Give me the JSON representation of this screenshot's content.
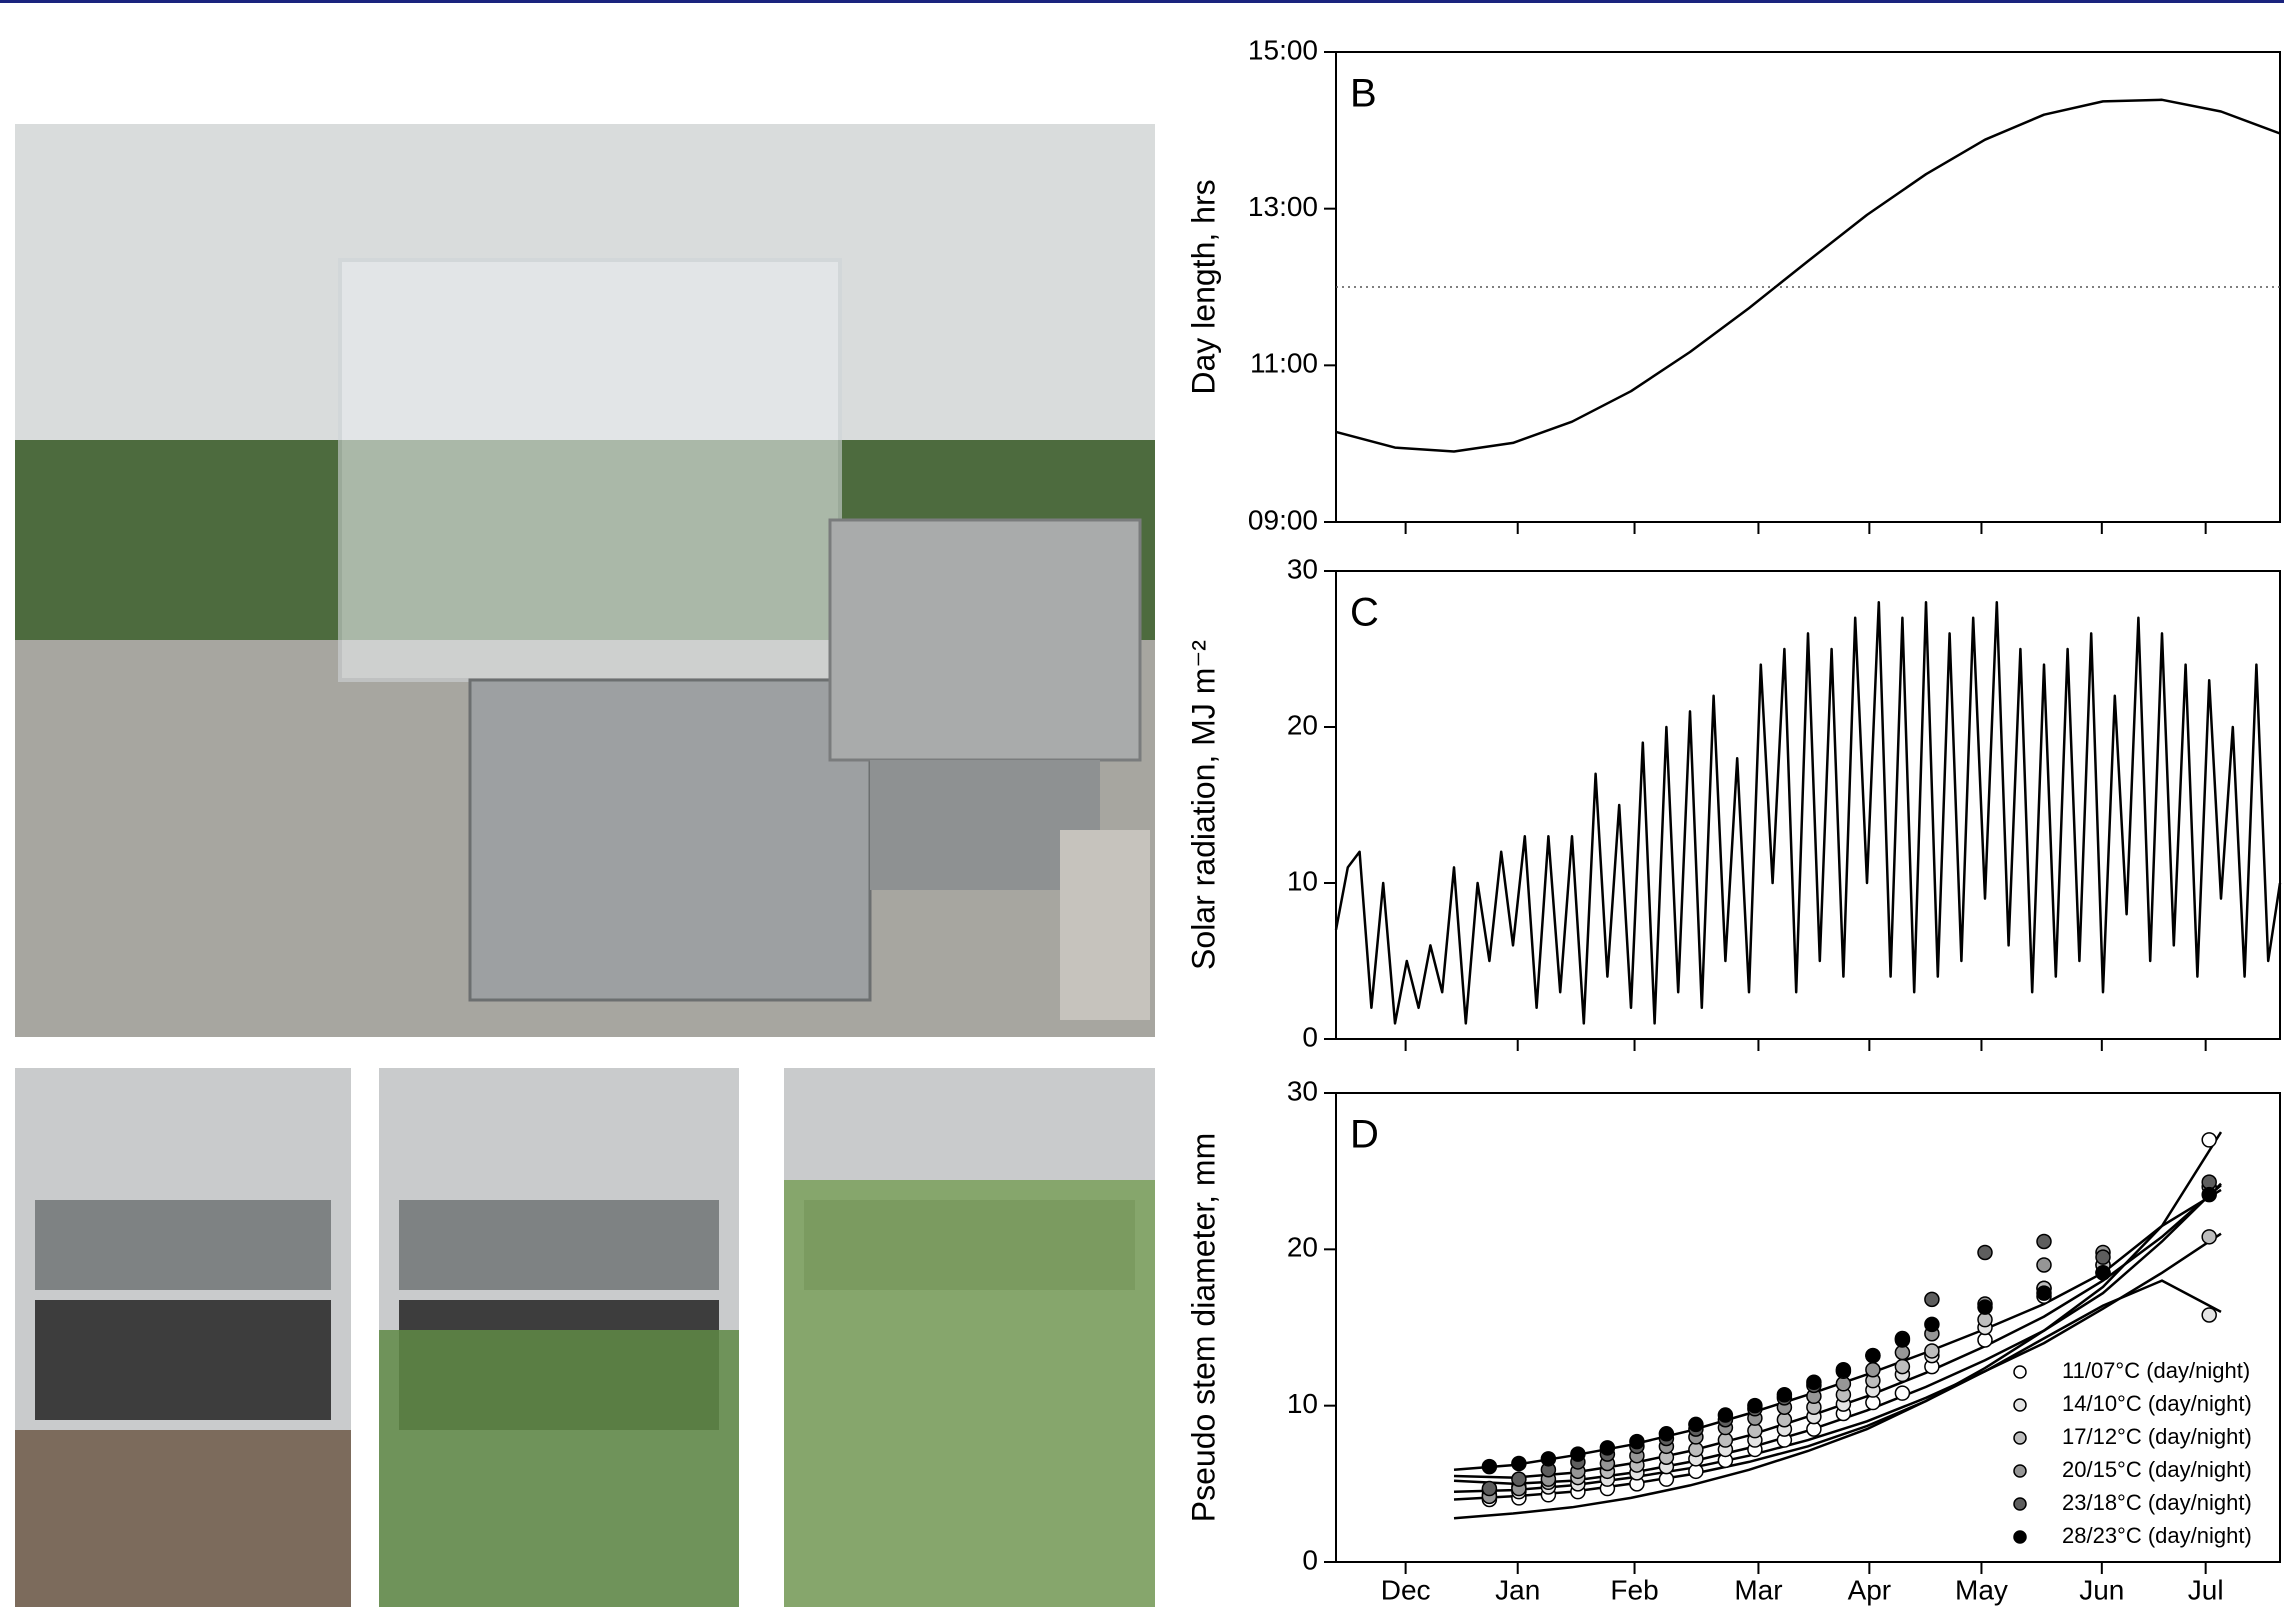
{
  "chart_data": [
    {
      "type": "line",
      "label": "B",
      "y_label": "Day length, hrs",
      "color": "#000000",
      "x": [
        0,
        0.5,
        1,
        1.5,
        2,
        2.5,
        3,
        3.5,
        4,
        4.5,
        5,
        5.5,
        6,
        6.5,
        7,
        7.5,
        8
      ],
      "values": [
        10.15,
        9.95,
        9.9,
        10.01,
        10.28,
        10.67,
        11.17,
        11.73,
        12.33,
        12.92,
        13.44,
        13.88,
        14.2,
        14.37,
        14.39,
        14.24,
        13.96
      ],
      "xlim": [
        0,
        8
      ],
      "ylim": [
        9,
        15
      ],
      "yticks": [
        {
          "value": 9,
          "label": "09:00"
        },
        {
          "value": 11,
          "label": "11:00"
        },
        {
          "value": 13,
          "label": "13:00"
        },
        {
          "value": 15,
          "label": "15:00"
        }
      ],
      "hline": 12
    },
    {
      "type": "line",
      "label": "C",
      "y_label": "Solar radiation, MJ m⁻²",
      "color": "#000000",
      "x": [
        0,
        0.1,
        0.2,
        0.3,
        0.4,
        0.5,
        0.6,
        0.7,
        0.8,
        0.9,
        1,
        1.1,
        1.2,
        1.3,
        1.4,
        1.5,
        1.6,
        1.7,
        1.8,
        1.9,
        2,
        2.1,
        2.2,
        2.3,
        2.4,
        2.5,
        2.6,
        2.7,
        2.8,
        2.9,
        3,
        3.1,
        3.2,
        3.3,
        3.4,
        3.5,
        3.6,
        3.7,
        3.8,
        3.9,
        4,
        4.1,
        4.2,
        4.3,
        4.4,
        4.5,
        4.6,
        4.7,
        4.8,
        4.9,
        5,
        5.1,
        5.2,
        5.3,
        5.4,
        5.5,
        5.6,
        5.7,
        5.8,
        5.9,
        6,
        6.1,
        6.2,
        6.3,
        6.4,
        6.5,
        6.6,
        6.7,
        6.8,
        6.9,
        7,
        7.1,
        7.2,
        7.3,
        7.4,
        7.5,
        7.6,
        7.7,
        7.8,
        7.9,
        8
      ],
      "values": [
        7,
        11,
        12,
        2,
        10,
        1,
        5,
        2,
        6,
        3,
        11,
        1,
        10,
        5,
        12,
        6,
        13,
        2,
        13,
        3,
        13,
        1,
        17,
        4,
        15,
        2,
        19,
        1,
        20,
        3,
        21,
        2,
        22,
        5,
        18,
        3,
        24,
        10,
        25,
        3,
        26,
        5,
        25,
        4,
        27,
        10,
        28,
        4,
        27,
        3,
        28,
        4,
        26,
        5,
        27,
        9,
        28,
        6,
        25,
        3,
        24,
        4,
        25,
        5,
        26,
        3,
        22,
        8,
        27,
        5,
        26,
        6,
        24,
        4,
        23,
        9,
        20,
        4,
        24,
        5,
        10
      ],
      "xlim": [
        0,
        8
      ],
      "ylim": [
        0,
        30
      ],
      "yticks": [
        0,
        10,
        20,
        30
      ]
    },
    {
      "type": "scatter",
      "label": "D",
      "y_label": "Pseudo stem diameter, mm",
      "xlim": [
        0,
        8
      ],
      "ylim": [
        0,
        30
      ],
      "yticks": [
        0,
        10,
        20,
        30
      ],
      "xticks": [
        {
          "value": 0.59,
          "label": "Dec"
        },
        {
          "value": 1.54,
          "label": "Jan"
        },
        {
          "value": 2.53,
          "label": "Feb"
        },
        {
          "value": 3.58,
          "label": "Mar"
        },
        {
          "value": 4.52,
          "label": "Apr"
        },
        {
          "value": 5.47,
          "label": "May"
        },
        {
          "value": 6.49,
          "label": "Jun"
        },
        {
          "value": 7.37,
          "label": "Jul"
        }
      ],
      "legend": "lower right",
      "x": [
        1.3,
        1.55,
        1.8,
        2.05,
        2.3,
        2.55,
        2.8,
        3.05,
        3.3,
        3.55,
        3.8,
        4.05,
        4.3,
        4.55,
        4.8,
        5.05,
        5.5,
        6.0,
        6.5,
        7.4
      ],
      "fit_x": [
        1,
        1.5,
        2,
        2.5,
        3,
        3.5,
        4,
        4.5,
        5,
        5.5,
        6,
        6.5,
        7,
        7.5
      ],
      "series": [
        {
          "name": "11/07°C (day/night)",
          "color": "#ffffff",
          "values": [
            4.0,
            4.1,
            4.3,
            4.5,
            4.7,
            5.0,
            5.3,
            5.8,
            6.5,
            7.2,
            7.8,
            8.5,
            9.5,
            10.2,
            10.8,
            12.5,
            14.2,
            17.0,
            19.0,
            27.0
          ],
          "fit": [
            2.8,
            3.1,
            3.5,
            4.1,
            4.9,
            5.9,
            7.1,
            8.5,
            10.3,
            12.4,
            14.8,
            17.6,
            21.5,
            27.5
          ]
        },
        {
          "name": "14/10°C (day/night)",
          "color": "#e4e4e4",
          "values": [
            4.3,
            4.5,
            4.8,
            5.0,
            5.3,
            5.7,
            6.1,
            6.6,
            7.2,
            7.8,
            8.5,
            9.3,
            10.1,
            11.0,
            12.0,
            13.2,
            15.0,
            17.5,
            18.5,
            15.8
          ],
          "fit": [
            4.0,
            4.2,
            4.5,
            5.0,
            5.6,
            6.4,
            7.4,
            8.7,
            10.3,
            12.2,
            14.3,
            16.4,
            18.0,
            16.0
          ]
        },
        {
          "name": "17/12°C (day/night)",
          "color": "#bdbdbd",
          "values": [
            4.6,
            4.8,
            5.1,
            5.4,
            5.8,
            6.2,
            6.7,
            7.2,
            7.8,
            8.4,
            9.1,
            9.9,
            10.7,
            11.6,
            12.5,
            13.5,
            15.5,
            17.5,
            19.0,
            20.8
          ],
          "fit": [
            4.5,
            4.6,
            4.9,
            5.4,
            6.0,
            6.8,
            7.8,
            9.0,
            10.5,
            12.2,
            14.0,
            16.2,
            18.5,
            21.0
          ]
        },
        {
          "name": "20/15°C (day/night)",
          "color": "#969696",
          "values": [
            4.2,
            4.7,
            5.3,
            5.8,
            6.3,
            6.8,
            7.4,
            8.0,
            8.6,
            9.2,
            9.9,
            10.6,
            11.4,
            12.3,
            13.4,
            14.6,
            16.5,
            19.0,
            19.8,
            24.0
          ],
          "fit": [
            5.2,
            5.0,
            5.2,
            5.7,
            6.4,
            7.3,
            8.4,
            9.7,
            11.2,
            12.9,
            14.8,
            17.2,
            20.5,
            24.2
          ]
        },
        {
          "name": "23/18°C (day/night)",
          "color": "#5e5e5e",
          "values": [
            4.7,
            5.3,
            5.9,
            6.4,
            6.9,
            7.4,
            7.9,
            8.5,
            9.1,
            9.8,
            10.5,
            11.3,
            12.2,
            13.2,
            14.3,
            16.8,
            19.8,
            20.5,
            19.5,
            24.3
          ],
          "fit": [
            5.5,
            5.4,
            5.7,
            6.3,
            7.1,
            8.1,
            9.3,
            10.6,
            12.1,
            13.8,
            15.7,
            18.0,
            20.8,
            24.1
          ]
        },
        {
          "name": "28/23°C (day/night)",
          "color": "#000000",
          "values": [
            6.1,
            6.3,
            6.6,
            6.9,
            7.3,
            7.7,
            8.2,
            8.8,
            9.4,
            10.0,
            10.7,
            11.5,
            12.3,
            13.2,
            14.2,
            15.2,
            16.3,
            17.2,
            18.5,
            23.5
          ],
          "fit": [
            5.9,
            6.2,
            6.8,
            7.5,
            8.4,
            9.5,
            10.7,
            12.0,
            13.4,
            14.9,
            16.5,
            18.5,
            21.5,
            23.8
          ]
        }
      ]
    }
  ]
}
